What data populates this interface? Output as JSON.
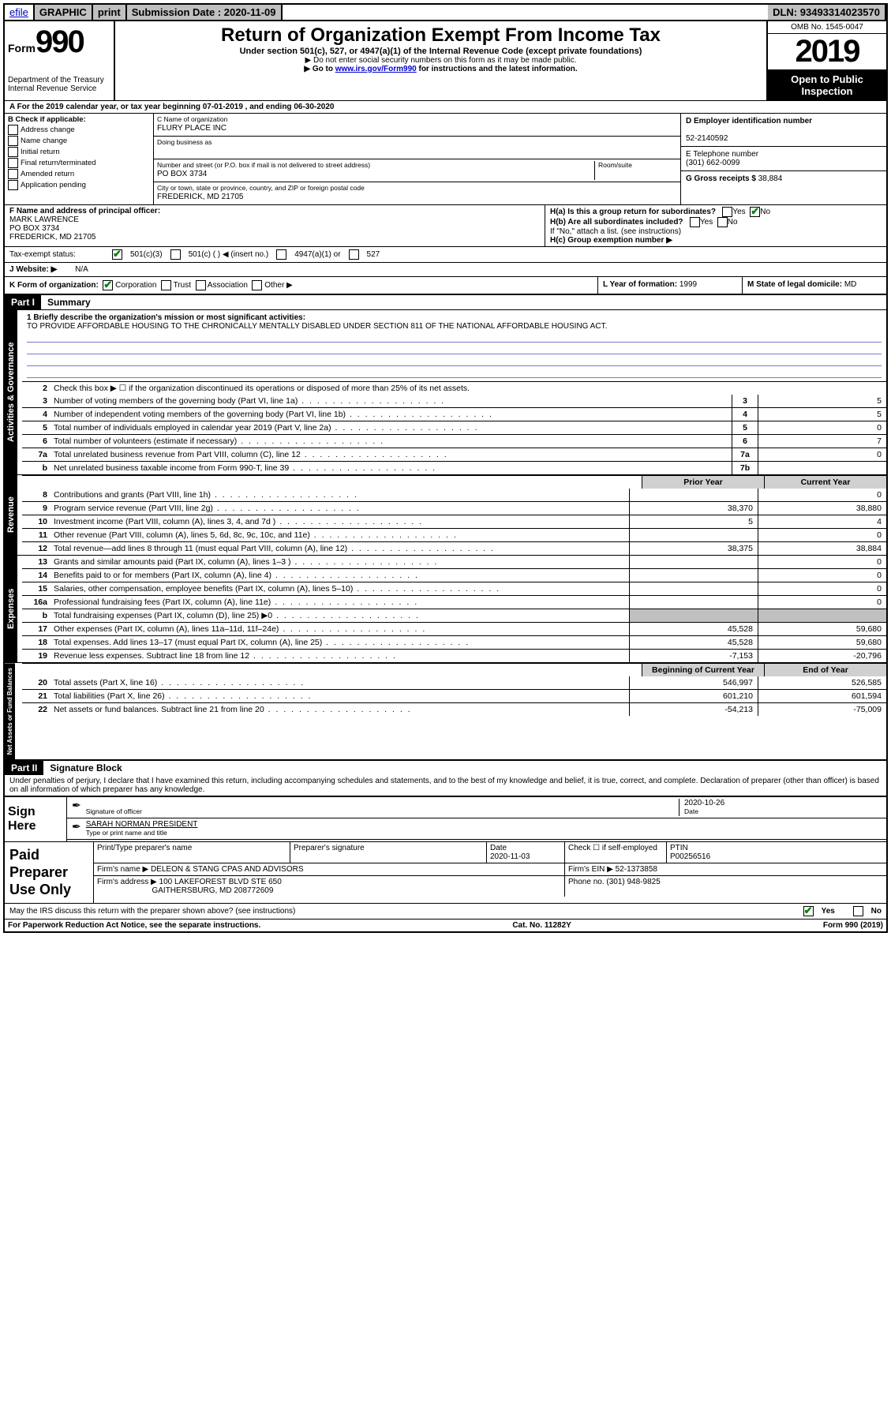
{
  "topbar": {
    "efile_link": "efile",
    "graphic_btn": "GRAPHIC",
    "print_btn": "print",
    "submission_label": "Submission Date : ",
    "submission_date": "2020-11-09",
    "dln_label": "DLN: ",
    "dln": "93493314023570"
  },
  "header": {
    "form_label": "Form",
    "form_number": "990",
    "dept": "Department of the Treasury",
    "irs": "Internal Revenue Service",
    "title": "Return of Organization Exempt From Income Tax",
    "sub1": "Under section 501(c), 527, or 4947(a)(1) of the Internal Revenue Code (except private foundations)",
    "sub2": "▶ Do not enter social security numbers on this form as it may be made public.",
    "sub3_pre": "▶ Go to ",
    "sub3_link": "www.irs.gov/Form990",
    "sub3_post": " for instructions and the latest information.",
    "omb": "OMB No. 1545-0047",
    "year": "2019",
    "open1": "Open to Public",
    "open2": "Inspection"
  },
  "rowA": "A For the 2019 calendar year, or tax year beginning 07-01-2019    , and ending 06-30-2020",
  "boxB": {
    "label": "B Check if applicable:",
    "items": [
      "Address change",
      "Name change",
      "Initial return",
      "Final return/terminated",
      "Amended return",
      "Application pending"
    ]
  },
  "boxC": {
    "label": "C Name of organization",
    "name": "FLURY PLACE INC",
    "dba_label": "Doing business as",
    "addr_label": "Number and street (or P.O. box if mail is not delivered to street address)",
    "room_label": "Room/suite",
    "addr": "PO BOX 3734",
    "city_label": "City or town, state or province, country, and ZIP or foreign postal code",
    "city": "FREDERICK, MD  21705"
  },
  "boxD": {
    "label": "D Employer identification number",
    "value": "52-2140592"
  },
  "boxE": {
    "label": "E Telephone number",
    "value": "(301) 662-0099"
  },
  "boxG": {
    "label": "G Gross receipts $ ",
    "value": "38,884"
  },
  "boxF": {
    "label": "F  Name and address of principal officer:",
    "name": "MARK LAWRENCE",
    "addr1": "PO BOX 3734",
    "addr2": "FREDERICK, MD  21705"
  },
  "boxH": {
    "a_label": "H(a)  Is this a group return for subordinates?",
    "b_label": "H(b)  Are all subordinates included?",
    "b_note": "If \"No,\" attach a list. (see instructions)",
    "c_label": "H(c)  Group exemption number ▶",
    "yes": "Yes",
    "no": "No"
  },
  "taxI": {
    "label": "Tax-exempt status:",
    "opt1": "501(c)(3)",
    "opt2": "501(c) (   ) ◀ (insert no.)",
    "opt3": "4947(a)(1) or",
    "opt4": "527"
  },
  "rowJ": {
    "label": "J   Website: ▶",
    "value": "N/A"
  },
  "rowK": {
    "label": "K Form of organization:",
    "opts": [
      "Corporation",
      "Trust",
      "Association",
      "Other ▶"
    ]
  },
  "rowL": {
    "label": "L Year of formation: ",
    "value": "1999"
  },
  "rowM": {
    "label": "M State of legal domicile: ",
    "value": "MD"
  },
  "part1": {
    "hdr": "Part I",
    "title": "Summary",
    "tab_ag": "Activities & Governance",
    "tab_rev": "Revenue",
    "tab_exp": "Expenses",
    "tab_na": "Net Assets or Fund Balances",
    "q1_label": "1  Briefly describe the organization's mission or most significant activities:",
    "q1_text": "TO PROVIDE AFFORDABLE HOUSING TO THE CHRONICALLY MENTALLY DISABLED UNDER SECTION 811 OF THE NATIONAL AFFORDABLE HOUSING ACT.",
    "q2": "Check this box ▶ ☐  if the organization discontinued its operations or disposed of more than 25% of its net assets.",
    "lines_ag": [
      {
        "n": "3",
        "d": "Number of voting members of the governing body (Part VI, line 1a)",
        "box": "3",
        "v": "5"
      },
      {
        "n": "4",
        "d": "Number of independent voting members of the governing body (Part VI, line 1b)",
        "box": "4",
        "v": "5"
      },
      {
        "n": "5",
        "d": "Total number of individuals employed in calendar year 2019 (Part V, line 2a)",
        "box": "5",
        "v": "0"
      },
      {
        "n": "6",
        "d": "Total number of volunteers (estimate if necessary)",
        "box": "6",
        "v": "7"
      },
      {
        "n": "7a",
        "d": "Total unrelated business revenue from Part VIII, column (C), line 12",
        "box": "7a",
        "v": "0"
      },
      {
        "n": "b",
        "d": "Net unrelated business taxable income from Form 990-T, line 39",
        "box": "7b",
        "v": ""
      }
    ],
    "col_prior": "Prior Year",
    "col_current": "Current Year",
    "lines_rev": [
      {
        "n": "8",
        "d": "Contributions and grants (Part VIII, line 1h)",
        "p": "",
        "c": "0"
      },
      {
        "n": "9",
        "d": "Program service revenue (Part VIII, line 2g)",
        "p": "38,370",
        "c": "38,880"
      },
      {
        "n": "10",
        "d": "Investment income (Part VIII, column (A), lines 3, 4, and 7d )",
        "p": "5",
        "c": "4"
      },
      {
        "n": "11",
        "d": "Other revenue (Part VIII, column (A), lines 5, 6d, 8c, 9c, 10c, and 11e)",
        "p": "",
        "c": "0"
      },
      {
        "n": "12",
        "d": "Total revenue—add lines 8 through 11 (must equal Part VIII, column (A), line 12)",
        "p": "38,375",
        "c": "38,884"
      }
    ],
    "lines_exp": [
      {
        "n": "13",
        "d": "Grants and similar amounts paid (Part IX, column (A), lines 1–3 )",
        "p": "",
        "c": "0"
      },
      {
        "n": "14",
        "d": "Benefits paid to or for members (Part IX, column (A), line 4)",
        "p": "",
        "c": "0"
      },
      {
        "n": "15",
        "d": "Salaries, other compensation, employee benefits (Part IX, column (A), lines 5–10)",
        "p": "",
        "c": "0"
      },
      {
        "n": "16a",
        "d": "Professional fundraising fees (Part IX, column (A), line 11e)",
        "p": "",
        "c": "0"
      },
      {
        "n": "b",
        "d": "Total fundraising expenses (Part IX, column (D), line 25) ▶0",
        "p": "SHADE",
        "c": "SHADE"
      },
      {
        "n": "17",
        "d": "Other expenses (Part IX, column (A), lines 11a–11d, 11f–24e)",
        "p": "45,528",
        "c": "59,680"
      },
      {
        "n": "18",
        "d": "Total expenses. Add lines 13–17 (must equal Part IX, column (A), line 25)",
        "p": "45,528",
        "c": "59,680"
      },
      {
        "n": "19",
        "d": "Revenue less expenses. Subtract line 18 from line 12",
        "p": "-7,153",
        "c": "-20,796"
      }
    ],
    "col_begin": "Beginning of Current Year",
    "col_end": "End of Year",
    "lines_na": [
      {
        "n": "20",
        "d": "Total assets (Part X, line 16)",
        "p": "546,997",
        "c": "526,585"
      },
      {
        "n": "21",
        "d": "Total liabilities (Part X, line 26)",
        "p": "601,210",
        "c": "601,594"
      },
      {
        "n": "22",
        "d": "Net assets or fund balances. Subtract line 21 from line 20",
        "p": "-54,213",
        "c": "-75,009"
      }
    ]
  },
  "part2": {
    "hdr": "Part II",
    "title": "Signature Block",
    "decl": "Under penalties of perjury, I declare that I have examined this return, including accompanying schedules and statements, and to the best of my knowledge and belief, it is true, correct, and complete. Declaration of preparer (other than officer) is based on all information of which preparer has any knowledge."
  },
  "sign": {
    "label": "Sign Here",
    "sig_officer": "Signature of officer",
    "date_lbl": "Date",
    "date": "2020-10-26",
    "name": "SARAH NORMAN  PRESIDENT",
    "name_lbl": "Type or print name and title"
  },
  "prep": {
    "label": "Paid Preparer Use Only",
    "h_name": "Print/Type preparer's name",
    "h_sig": "Preparer's signature",
    "h_date": "Date",
    "date": "2020-11-03",
    "h_check": "Check ☐ if self-employed",
    "h_ptin": "PTIN",
    "ptin": "P00256516",
    "firm_name_lbl": "Firm's name      ▶",
    "firm_name": "DELEON & STANG CPAS AND ADVISORS",
    "firm_ein_lbl": "Firm's EIN ▶",
    "firm_ein": "52-1373858",
    "firm_addr_lbl": "Firm's address  ▶",
    "firm_addr1": "100 LAKEFOREST BLVD STE 650",
    "firm_addr2": "GAITHERSBURG, MD  208772609",
    "phone_lbl": "Phone no. ",
    "phone": "(301) 948-9825"
  },
  "discuss": {
    "q": "May the IRS discuss this return with the preparer shown above? (see instructions)",
    "yes": "Yes",
    "no": "No"
  },
  "footer": {
    "left": "For Paperwork Reduction Act Notice, see the separate instructions.",
    "mid": "Cat. No. 11282Y",
    "right": "Form 990 (2019)"
  }
}
